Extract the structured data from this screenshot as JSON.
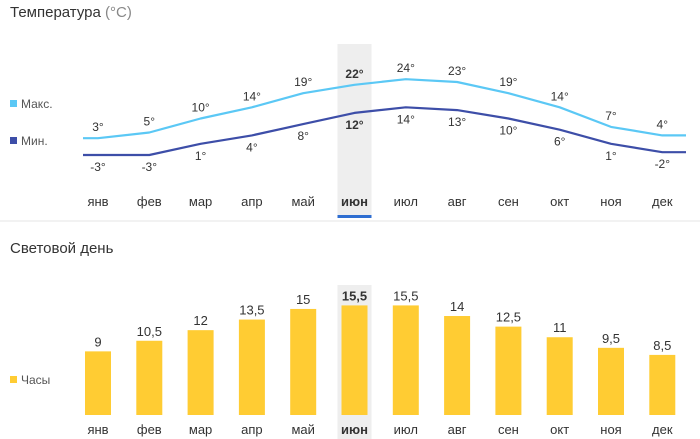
{
  "temperature": {
    "title": "Температура",
    "unit": "(°C)",
    "legend": [
      {
        "label": "Макс.",
        "color": "#5bc8f5"
      },
      {
        "label": "Мин.",
        "color": "#3d4ea8"
      }
    ]
  },
  "daylight": {
    "title": "Световой день",
    "legend": [
      {
        "label": "Часы",
        "color": "#ffcc33"
      }
    ]
  },
  "selected_month": "июн",
  "chart_data": [
    {
      "type": "line",
      "title": "Температура (°C)",
      "categories": [
        "янв",
        "фев",
        "мар",
        "апр",
        "май",
        "июн",
        "июл",
        "авг",
        "сен",
        "окт",
        "ноя",
        "дек"
      ],
      "series": [
        {
          "name": "Макс.",
          "values": [
            3,
            5,
            10,
            14,
            19,
            22,
            24,
            23,
            19,
            14,
            7,
            4
          ],
          "labels": [
            "3°",
            "5°",
            "10°",
            "14°",
            "19°",
            "22°",
            "24°",
            "23°",
            "19°",
            "14°",
            "7°",
            "4°"
          ],
          "color": "#5bc8f5"
        },
        {
          "name": "Мин.",
          "values": [
            -3,
            -3,
            1,
            4,
            8,
            12,
            14,
            13,
            10,
            6,
            1,
            -2
          ],
          "labels": [
            "-3°",
            "-3°",
            "1°",
            "4°",
            "8°",
            "12°",
            "14°",
            "13°",
            "10°",
            "6°",
            "1°",
            "-2°"
          ],
          "color": "#3d4ea8"
        }
      ],
      "legend": "left",
      "grid": false
    },
    {
      "type": "bar",
      "title": "Световой день",
      "categories": [
        "янв",
        "фев",
        "мар",
        "апр",
        "май",
        "июн",
        "июл",
        "авг",
        "сен",
        "окт",
        "ноя",
        "дек"
      ],
      "series": [
        {
          "name": "Часы",
          "values": [
            9,
            10.5,
            12,
            13.5,
            15,
            15.5,
            15.5,
            14,
            12.5,
            11,
            9.5,
            8.5
          ],
          "labels": [
            "9",
            "10,5",
            "12",
            "13,5",
            "15",
            "15,5",
            "15,5",
            "14",
            "12,5",
            "11",
            "9,5",
            "8,5"
          ],
          "color": "#ffcc33"
        }
      ],
      "legend": "left",
      "grid": false
    }
  ]
}
